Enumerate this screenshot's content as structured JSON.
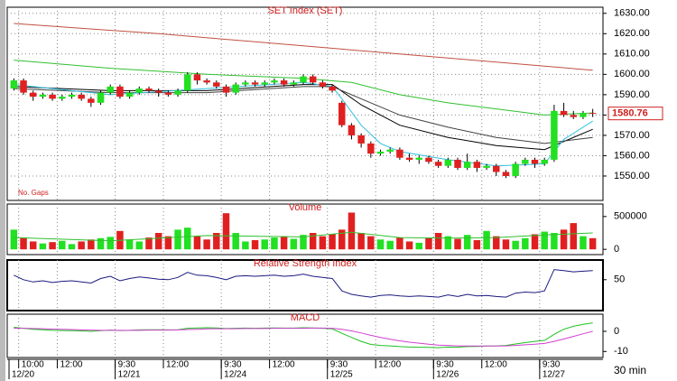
{
  "chart_data": [
    {
      "type": "candlestick",
      "title": "SET Index (SET)",
      "annotation": "No. Gaps",
      "up_color": "#22e022",
      "down_color": "#e02020",
      "open": [
        1593,
        1597,
        1591,
        1589,
        1590,
        1588,
        1589,
        1590,
        1588,
        1586,
        1591,
        1594,
        1589,
        1591,
        1593,
        1592,
        1591,
        1590,
        1592,
        1600,
        1597,
        1596,
        1594,
        1591,
        1595,
        1596,
        1595,
        1596,
        1597,
        1595,
        1596,
        1599,
        1596,
        1594,
        1586,
        1575,
        1570,
        1566,
        1561,
        1562,
        1563,
        1559,
        1558,
        1559,
        1557,
        1555,
        1558,
        1554,
        1557,
        1554,
        1555,
        1552,
        1550,
        1556,
        1558,
        1556,
        1558,
        1582,
        1580,
        1579,
        1581
      ],
      "high": [
        1598,
        1598,
        1592,
        1591,
        1591,
        1590,
        1591,
        1591,
        1589,
        1592,
        1595,
        1595,
        1592,
        1594,
        1594,
        1593,
        1592,
        1593,
        1601,
        1601,
        1598,
        1597,
        1595,
        1596,
        1597,
        1597,
        1597,
        1598,
        1598,
        1597,
        1600,
        1600,
        1597,
        1595,
        1587,
        1576,
        1571,
        1567,
        1563,
        1564,
        1564,
        1561,
        1560,
        1560,
        1558,
        1559,
        1559,
        1561,
        1558,
        1556,
        1556,
        1553,
        1557,
        1559,
        1559,
        1559,
        1585,
        1586,
        1582,
        1582,
        1583
      ],
      "low": [
        1592,
        1590,
        1587,
        1588,
        1587,
        1587,
        1588,
        1587,
        1584,
        1585,
        1590,
        1588,
        1588,
        1590,
        1591,
        1589,
        1589,
        1589,
        1591,
        1595,
        1595,
        1593,
        1589,
        1590,
        1594,
        1594,
        1594,
        1595,
        1594,
        1594,
        1595,
        1595,
        1593,
        1591,
        1574,
        1568,
        1564,
        1559,
        1560,
        1561,
        1558,
        1557,
        1556,
        1556,
        1554,
        1554,
        1553,
        1553,
        1552,
        1553,
        1550,
        1549,
        1549,
        1555,
        1554,
        1555,
        1557,
        1579,
        1578,
        1578,
        1579
      ],
      "close": [
        1597,
        1591,
        1589,
        1590,
        1588,
        1589,
        1590,
        1588,
        1586,
        1591,
        1594,
        1589,
        1591,
        1593,
        1592,
        1591,
        1590,
        1592,
        1600,
        1597,
        1596,
        1594,
        1591,
        1595,
        1596,
        1595,
        1596,
        1597,
        1595,
        1596,
        1599,
        1596,
        1594,
        1592,
        1575,
        1570,
        1566,
        1561,
        1562,
        1563,
        1559,
        1558,
        1559,
        1557,
        1555,
        1558,
        1554,
        1557,
        1554,
        1555,
        1552,
        1550,
        1556,
        1558,
        1556,
        1558,
        1582,
        1580,
        1579,
        1581,
        1580.76
      ],
      "overlays": [
        {
          "color": "#c05040",
          "x": [
            0,
            15,
            30,
            45,
            60
          ],
          "values": [
            1625,
            1620,
            1614,
            1608,
            1602
          ]
        },
        {
          "color": "#30c030",
          "x": [
            0,
            10,
            20,
            30,
            35,
            40,
            45,
            50,
            55,
            60
          ],
          "values": [
            1607,
            1603,
            1600,
            1598,
            1596,
            1590,
            1586,
            1583,
            1580,
            1581
          ]
        },
        {
          "color": "#000000",
          "x": [
            0,
            10,
            20,
            30,
            33,
            36,
            40,
            45,
            50,
            55,
            60
          ],
          "values": [
            1594,
            1592,
            1592,
            1595,
            1595,
            1585,
            1575,
            1569,
            1565,
            1563,
            1573
          ]
        },
        {
          "color": "#404040",
          "x": [
            0,
            10,
            20,
            30,
            33,
            36,
            40,
            45,
            50,
            55,
            60
          ],
          "values": [
            1593,
            1591,
            1591,
            1594,
            1594,
            1588,
            1580,
            1574,
            1569,
            1566,
            1569
          ]
        },
        {
          "color": "#30c0e0",
          "x": [
            0,
            10,
            20,
            30,
            33,
            34,
            36,
            38,
            40,
            45,
            50,
            55,
            57,
            60
          ],
          "values": [
            1595,
            1590,
            1593,
            1596,
            1594,
            1588,
            1575,
            1566,
            1562,
            1558,
            1555,
            1556,
            1568,
            1577
          ]
        }
      ],
      "ylim": [
        1538,
        1633
      ],
      "yticks": [
        {
          "value": 1550,
          "label": "1550.00"
        },
        {
          "value": 1560,
          "label": "1560.00"
        },
        {
          "value": 1570,
          "label": "1570.00"
        },
        {
          "value": 1580,
          "label": "1580.00"
        },
        {
          "value": 1590,
          "label": "1590.00"
        },
        {
          "value": 1600,
          "label": "1600.00"
        },
        {
          "value": 1610,
          "label": "1610.00"
        },
        {
          "value": 1620,
          "label": "1620.00"
        },
        {
          "value": 1630,
          "label": "1630.00"
        }
      ],
      "grid": true
    },
    {
      "type": "bar",
      "title": "Volume",
      "values": [
        300000,
        180000,
        120000,
        90000,
        110000,
        130000,
        80000,
        120000,
        150000,
        170000,
        190000,
        280000,
        150000,
        120000,
        180000,
        250000,
        200000,
        300000,
        330000,
        200000,
        150000,
        250000,
        550000,
        250000,
        120000,
        140000,
        150000,
        180000,
        200000,
        160000,
        220000,
        250000,
        200000,
        230000,
        300000,
        560000,
        250000,
        200000,
        150000,
        130000,
        180000,
        120000,
        100000,
        170000,
        250000,
        200000,
        160000,
        220000,
        140000,
        280000,
        200000,
        150000,
        130000,
        170000,
        230000,
        270000,
        250000,
        300000,
        400000,
        200000,
        170000
      ],
      "overlays": [
        {
          "color": "#30c030",
          "x": [
            0,
            10,
            20,
            30,
            35,
            40,
            45,
            50,
            55,
            60
          ],
          "values": [
            180000,
            130000,
            210000,
            190000,
            260000,
            180000,
            170000,
            180000,
            220000,
            250000
          ]
        }
      ],
      "ylim": [
        -80000,
        690000
      ],
      "yticks": [
        0,
        500000
      ]
    },
    {
      "type": "line",
      "title": "Relative Strength Index",
      "series": [
        {
          "color": "#1a1a80",
          "values": [
            58,
            50,
            46,
            48,
            45,
            47,
            48,
            46,
            44,
            52,
            56,
            48,
            52,
            55,
            53,
            51,
            50,
            54,
            63,
            58,
            57,
            54,
            50,
            56,
            57,
            56,
            57,
            58,
            56,
            57,
            60,
            56,
            54,
            52,
            30,
            24,
            21,
            19,
            22,
            23,
            21,
            20,
            21,
            20,
            19,
            23,
            20,
            24,
            21,
            22,
            20,
            19,
            26,
            28,
            27,
            30,
            68,
            66,
            64,
            65,
            66
          ]
        }
      ],
      "ylim": [
        -5,
        85
      ],
      "yticks": [
        50
      ]
    },
    {
      "type": "line",
      "title": "MACD",
      "series": [
        {
          "color": "#20c020",
          "values": [
            2,
            1.5,
            1,
            0.8,
            0.5,
            0.4,
            0.3,
            0.2,
            0,
            0.3,
            0.6,
            0.4,
            0.5,
            0.7,
            0.8,
            0.8,
            0.7,
            0.8,
            1.5,
            1.7,
            1.8,
            1.7,
            1.4,
            1.5,
            1.6,
            1.5,
            1.6,
            1.7,
            1.6,
            1.6,
            1.8,
            1.7,
            1.5,
            1.2,
            -1,
            -3,
            -5,
            -6.5,
            -7,
            -7.2,
            -7.6,
            -7.8,
            -7.9,
            -8,
            -8.1,
            -7.8,
            -7.9,
            -7.6,
            -7.5,
            -7.3,
            -7.2,
            -7,
            -6.3,
            -5.6,
            -5,
            -4.5,
            -1.5,
            1,
            2.5,
            3.5,
            4.2
          ]
        },
        {
          "color": "#d040d0",
          "values": [
            1.5,
            1.5,
            1.4,
            1.3,
            1.1,
            1,
            0.9,
            0.7,
            0.6,
            0.5,
            0.5,
            0.5,
            0.5,
            0.5,
            0.6,
            0.6,
            0.6,
            0.7,
            0.9,
            1,
            1.2,
            1.3,
            1.3,
            1.3,
            1.4,
            1.4,
            1.4,
            1.5,
            1.5,
            1.5,
            1.5,
            1.6,
            1.6,
            1.5,
            1,
            0.2,
            -0.8,
            -2,
            -3,
            -3.9,
            -4.7,
            -5.4,
            -5.9,
            -6.4,
            -6.8,
            -7,
            -7.2,
            -7.3,
            -7.3,
            -7.3,
            -7.3,
            -7.2,
            -7,
            -6.7,
            -6.4,
            -6,
            -5,
            -3.8,
            -2.5,
            -1.2,
            0
          ]
        }
      ],
      "ylim": [
        -13,
        8.5
      ],
      "yticks": [
        0,
        -10
      ],
      "xticks": [
        {
          "value": 1,
          "label": "10:00"
        },
        {
          "value": 5,
          "label": "12:00"
        },
        {
          "value": 11,
          "label": "9:30"
        },
        {
          "value": 16,
          "label": "12:00"
        },
        {
          "value": 22,
          "label": "9:30"
        },
        {
          "value": 27,
          "label": "12:00"
        },
        {
          "value": 33,
          "label": "9:30"
        },
        {
          "value": 38,
          "label": "12:00"
        },
        {
          "value": 44,
          "label": "9:30"
        },
        {
          "value": 49,
          "label": "12:00"
        },
        {
          "value": 55,
          "label": "9:30"
        }
      ],
      "date_ticks": [
        {
          "value": 0,
          "label": "12/20"
        },
        {
          "value": 11,
          "label": "12/21"
        },
        {
          "value": 22,
          "label": "12/24"
        },
        {
          "value": 33,
          "label": "12/25"
        },
        {
          "value": 44,
          "label": "12/26"
        },
        {
          "value": 55,
          "label": "12/27"
        }
      ],
      "x_label": "30 min"
    }
  ]
}
